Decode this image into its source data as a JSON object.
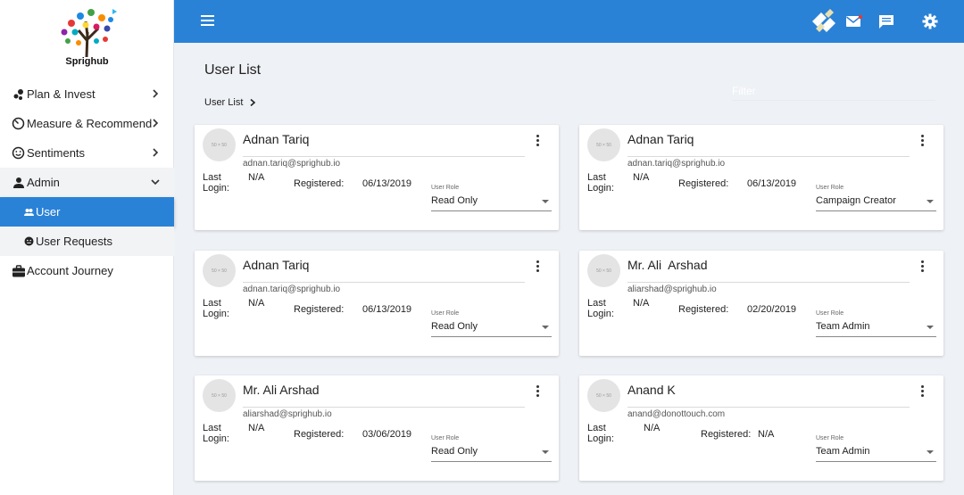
{
  "app": {
    "name": "Sprighub"
  },
  "sidebar": {
    "items": [
      {
        "label": "Plan & Invest"
      },
      {
        "label": "Measure & Recommend"
      },
      {
        "label": "Sentiments"
      },
      {
        "label": "Admin"
      },
      {
        "label": "User"
      },
      {
        "label": "User Requests"
      },
      {
        "label": "Account Journey"
      }
    ]
  },
  "page": {
    "title": "User List",
    "breadcrumb": "User List",
    "filter_placeholder": "Filter"
  },
  "labels": {
    "last_login": "Last Login:",
    "registered": "Registered:",
    "user_role": "User Role",
    "avatar": "50 × 50"
  },
  "users": [
    {
      "name": "Adnan Tariq",
      "email": "adnan.tariq@sprighub.io",
      "last_login": "N/A",
      "registered": "06/13/2019",
      "role": "Read Only"
    },
    {
      "name": "Adnan Tariq",
      "email": "adnan.tariq@sprighub.io",
      "last_login": "N/A",
      "registered": "06/13/2019",
      "role": "Campaign Creator"
    },
    {
      "name": "Adnan Tariq",
      "email": "adnan.tariq@sprighub.io",
      "last_login": "N/A",
      "registered": "06/13/2019",
      "role": "Read Only"
    },
    {
      "name": "Mr. Ali  Arshad",
      "email": "aliarshad@sprighub.io",
      "last_login": "N/A",
      "registered": "02/20/2019",
      "role": "Team Admin"
    },
    {
      "name": "Mr. Ali Arshad",
      "email": "aliarshad@sprighub.io",
      "last_login": "N/A",
      "registered": "03/06/2019",
      "role": "Read Only"
    },
    {
      "name": "Anand K",
      "email": "anand@donottouch.com",
      "last_login": "N/A",
      "registered": "N/A",
      "role": "Team Admin"
    }
  ],
  "colors": {
    "primary": "#2a82d6",
    "background": "#eef1f5"
  }
}
